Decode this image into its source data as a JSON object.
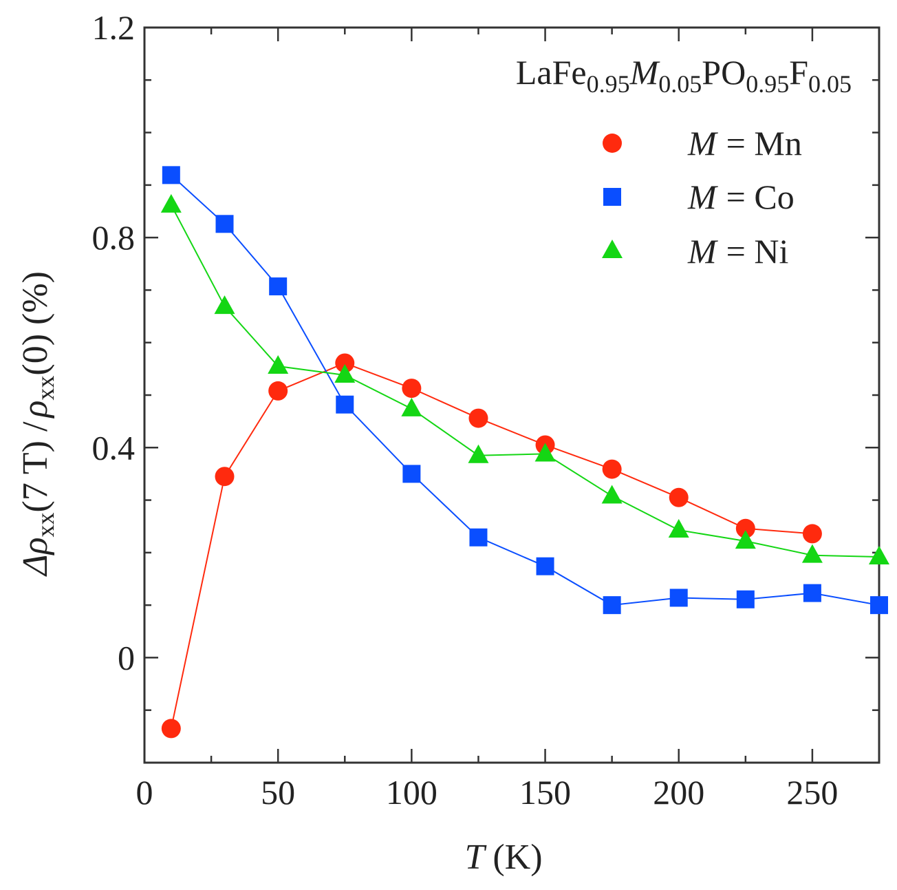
{
  "chart_data": {
    "type": "line",
    "title": {
      "base1": "LaFe",
      "sub1": "0.95",
      "italic": "M",
      "sub2": "0.05",
      "base2": "PO",
      "sub3": "0.95",
      "base3": "F",
      "sub4": "0.05"
    },
    "xlabel": {
      "var": "T",
      "unit": "(K)"
    },
    "ylabel": {
      "delta": "Δ",
      "rho1": "ρ",
      "sub1": "xx",
      "mid": "(7 T) /",
      "rho2": "ρ",
      "sub2": "xx",
      "end": "(0) (%)"
    },
    "xlim": [
      0,
      275
    ],
    "ylim": [
      -0.2,
      1.2
    ],
    "xticks": [
      0,
      50,
      100,
      150,
      200,
      250
    ],
    "yticks": [
      0,
      0.4,
      0.8,
      1.2
    ],
    "yticks_labels": [
      "0",
      "0.4",
      "0.8",
      "1.2"
    ],
    "legend_position": "top-right",
    "series": [
      {
        "name": "Mn",
        "legend_var": "M",
        "legend_rest": "= Mn",
        "marker": "circle",
        "color": "#ff2a0e",
        "x": [
          10,
          30,
          50,
          75,
          100,
          125,
          150,
          175,
          200,
          225,
          250
        ],
        "y": [
          -0.135,
          0.345,
          0.508,
          0.561,
          0.513,
          0.456,
          0.405,
          0.359,
          0.305,
          0.246,
          0.236
        ]
      },
      {
        "name": "Co",
        "legend_var": "M",
        "legend_rest": "= Co",
        "marker": "square",
        "color": "#0a4eff",
        "x": [
          10,
          30,
          50,
          75,
          100,
          125,
          150,
          175,
          200,
          225,
          250,
          275
        ],
        "y": [
          0.919,
          0.826,
          0.707,
          0.482,
          0.35,
          0.229,
          0.174,
          0.1,
          0.114,
          0.111,
          0.123,
          0.1
        ]
      },
      {
        "name": "Ni",
        "legend_var": "M",
        "legend_rest": "= Ni",
        "marker": "triangle",
        "color": "#14d614",
        "x": [
          10,
          30,
          50,
          75,
          100,
          125,
          150,
          175,
          200,
          225,
          250,
          275
        ],
        "y": [
          0.862,
          0.669,
          0.555,
          0.538,
          0.474,
          0.385,
          0.388,
          0.308,
          0.243,
          0.222,
          0.195,
          0.192
        ]
      }
    ]
  }
}
